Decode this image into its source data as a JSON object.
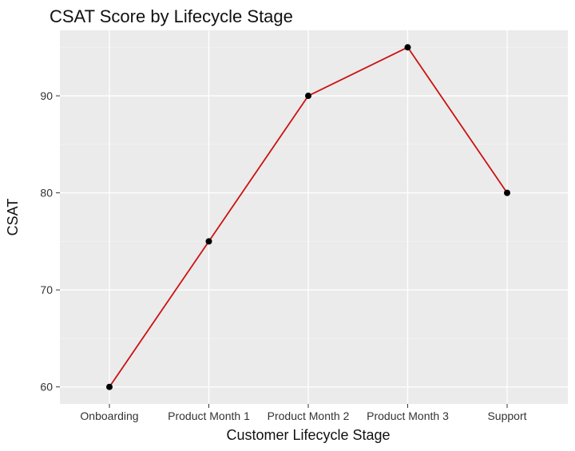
{
  "chart_data": {
    "type": "line",
    "title": "CSAT Score by Lifecycle Stage",
    "xlabel": "Customer Lifecycle Stage",
    "ylabel": "CSAT",
    "categories": [
      "Onboarding",
      "Product Month 1",
      "Product Month 2",
      "Product Month 3",
      "Support"
    ],
    "series": [
      {
        "values": [
          60,
          75,
          90,
          95,
          80
        ]
      }
    ],
    "ylim": [
      58.25,
      96.75
    ],
    "yticks": [
      60,
      70,
      80,
      90
    ],
    "grid": true,
    "legend": "none",
    "colors": {
      "line": "#cc1111",
      "point": "#000000",
      "panel": "#ebebeb"
    }
  }
}
